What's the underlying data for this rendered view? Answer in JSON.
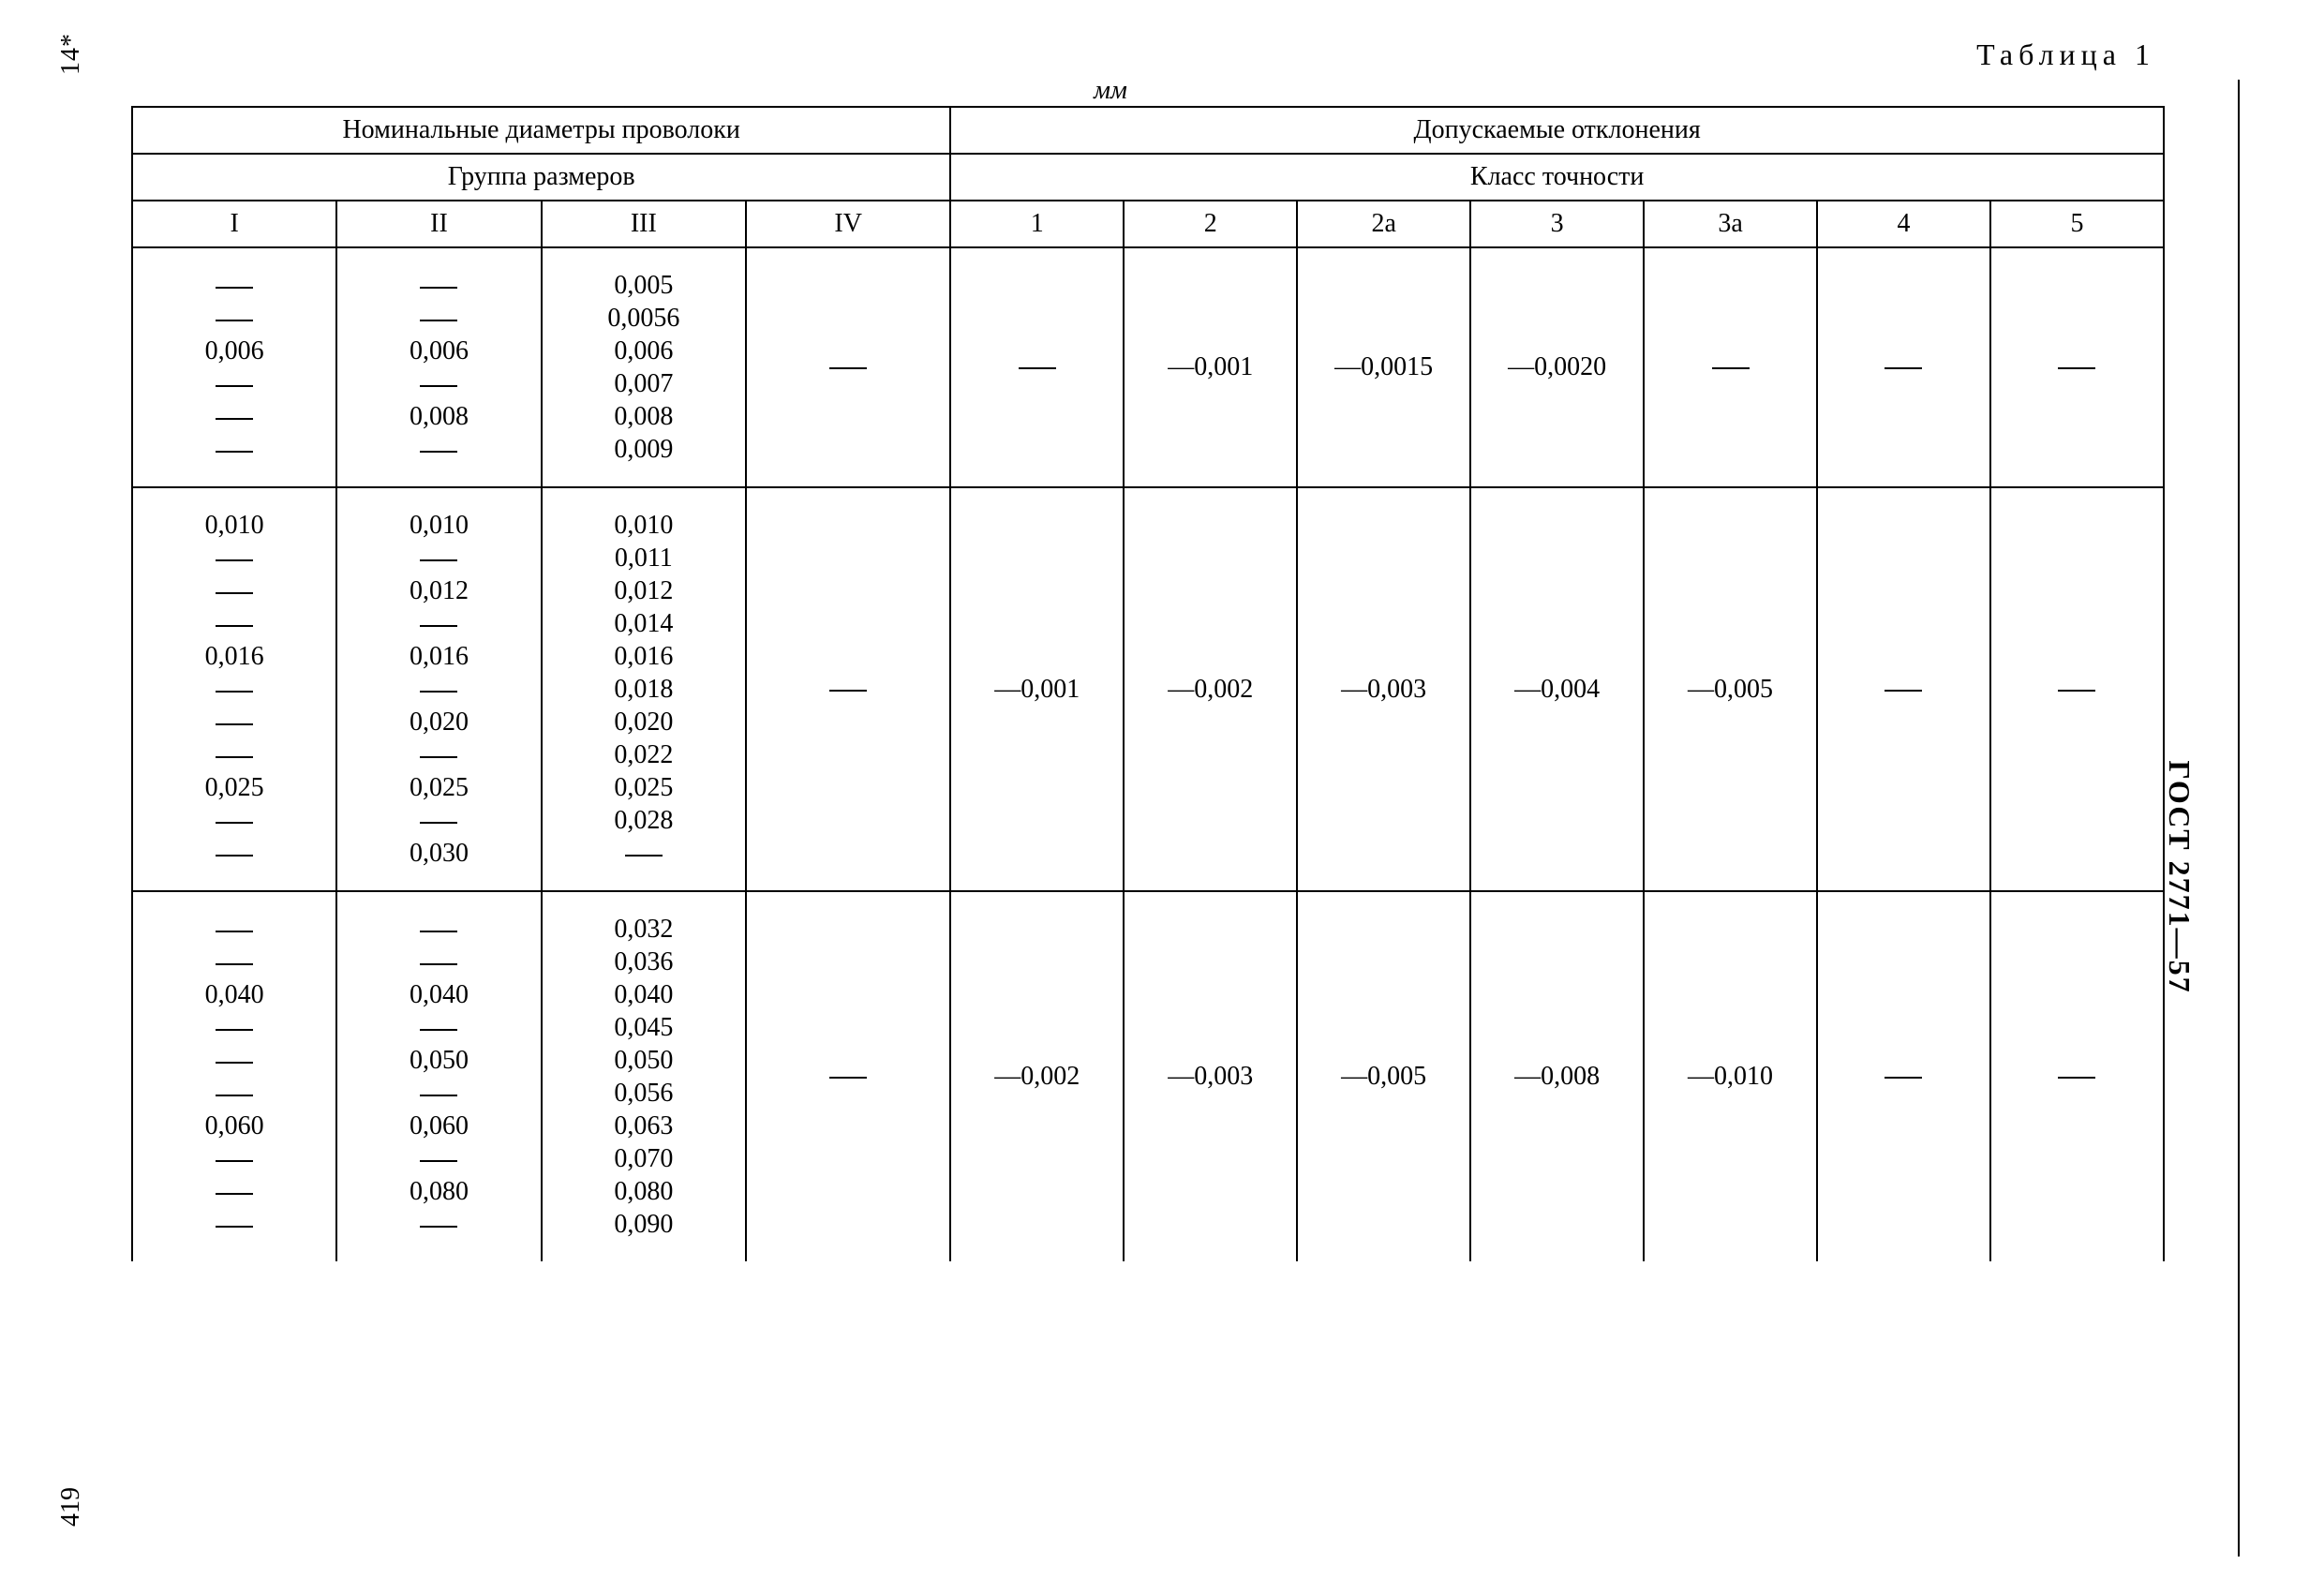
{
  "page_top_marker": "14*",
  "page_bottom_marker": "419",
  "document_code": "ГОСТ 2771—57",
  "table_label": "Таблица 1",
  "unit": "мм",
  "headers": {
    "nominal": "Номинальные диаметры проволоки",
    "deviations": "Допускаемые отклонения",
    "size_group": "Группа размеров",
    "precision_class": "Класс точности",
    "groups": [
      "I",
      "II",
      "III",
      "IV"
    ],
    "classes": [
      "1",
      "2",
      "2а",
      "3",
      "3а",
      "4",
      "5"
    ]
  },
  "rows": [
    {
      "g1": [
        "—",
        "—",
        "0,006",
        "—",
        "—",
        "—"
      ],
      "g2": [
        "—",
        "—",
        "0,006",
        "—",
        "0,008",
        "—"
      ],
      "g3": [
        "0,005",
        "0,0056",
        "0,006",
        "0,007",
        "0,008",
        "0,009"
      ],
      "g4": "—",
      "c1": "—",
      "c2": "—0,001",
      "c2a": "—0,0015",
      "c3": "—0,0020",
      "c3a": "—",
      "c4": "—",
      "c5": "—"
    },
    {
      "g1": [
        "0,010",
        "—",
        "—",
        "—",
        "0,016",
        "—",
        "—",
        "—",
        "0,025",
        "—",
        "—"
      ],
      "g2": [
        "0,010",
        "—",
        "0,012",
        "—",
        "0,016",
        "—",
        "0,020",
        "—",
        "0,025",
        "—",
        "0,030"
      ],
      "g3": [
        "0,010",
        "0,011",
        "0,012",
        "0,014",
        "0,016",
        "0,018",
        "0,020",
        "0,022",
        "0,025",
        "0,028",
        "—"
      ],
      "g4": "—",
      "c1": "—0,001",
      "c2": "—0,002",
      "c2a": "—0,003",
      "c3": "—0,004",
      "c3a": "—0,005",
      "c4": "—",
      "c5": "—"
    },
    {
      "g1": [
        "—",
        "—",
        "0,040",
        "—",
        "—",
        "—",
        "0,060",
        "—",
        "—",
        "—"
      ],
      "g2": [
        "—",
        "—",
        "0,040",
        "—",
        "0,050",
        "—",
        "0,060",
        "—",
        "0,080",
        "—"
      ],
      "g3": [
        "0,032",
        "0,036",
        "0,040",
        "0,045",
        "0,050",
        "0,056",
        "0,063",
        "0,070",
        "0,080",
        "0,090"
      ],
      "g4": "—",
      "c1": "—0,002",
      "c2": "—0,003",
      "c2a": "—0,005",
      "c3": "—0,008",
      "c3a": "—0,010",
      "c4": "—",
      "c5": "—"
    }
  ]
}
